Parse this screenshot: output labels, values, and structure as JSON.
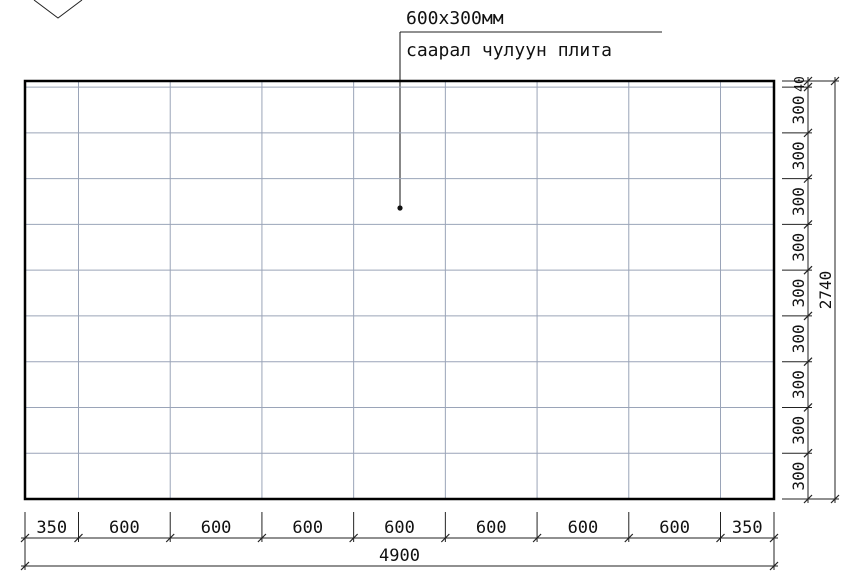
{
  "leader": {
    "size_label": "600x300мм",
    "material_label": "саарал чулуун плита"
  },
  "horizontal_dimensions": {
    "segments": [
      "350",
      "600",
      "600",
      "600",
      "600",
      "600",
      "600",
      "600",
      "350"
    ],
    "total": "4900"
  },
  "vertical_dimensions": {
    "segments": [
      "40",
      "300",
      "300",
      "300",
      "300",
      "300",
      "300",
      "300",
      "300",
      "300"
    ],
    "total": "2740"
  },
  "colors": {
    "border": "#000000",
    "grid": "#9aa4b8",
    "dimension": "#222222"
  }
}
